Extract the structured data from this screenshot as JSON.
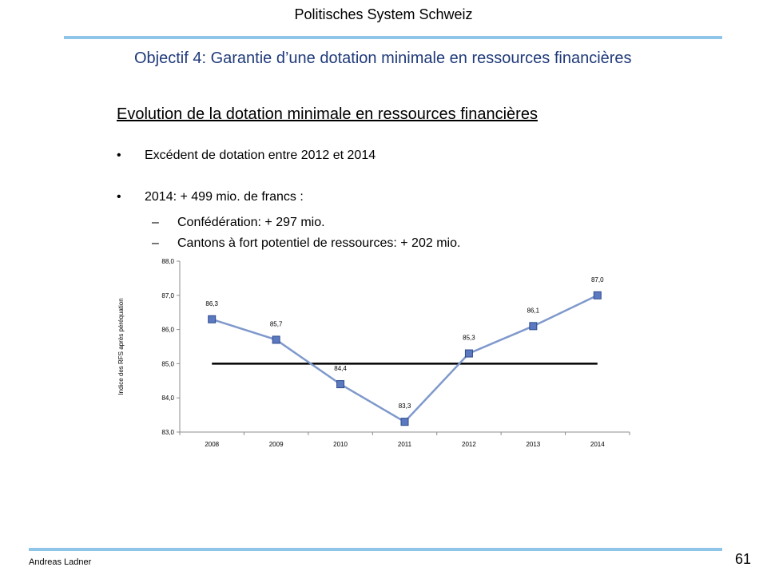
{
  "header": {
    "title": "Politisches System Schweiz"
  },
  "slide": {
    "title": "Objectif 4: Garantie d’une dotation minimale en ressources financières",
    "heading": "Evolution de la dotation minimale en ressources financières",
    "bullets": [
      {
        "marker": "•",
        "text": "Excédent de dotation entre 2012 et 2014"
      },
      {
        "marker": "•",
        "text": "2014: + 499 mio. de francs :"
      }
    ],
    "sub_bullets": [
      {
        "marker": "–",
        "text": "Confédération: + 297 mio."
      },
      {
        "marker": "–",
        "text": "Cantons à fort potentiel de ressources: + 202 mio."
      }
    ]
  },
  "chart_data": {
    "type": "line",
    "title": "",
    "xlabel": "",
    "ylabel": "Indice des RFS après péréquation",
    "categories": [
      "2008",
      "2009",
      "2010",
      "2011",
      "2012",
      "2013",
      "2014"
    ],
    "series": [
      {
        "values": [
          86.3,
          85.7,
          84.4,
          83.3,
          85.3,
          86.1,
          87.0
        ],
        "labels": [
          "86,3",
          "85,7",
          "84,4",
          "83,3",
          "85,3",
          "86,1",
          "87,0"
        ],
        "color": "#7f99cc",
        "marker_color": "#5b79c0"
      }
    ],
    "reference_line": {
      "value": 85.0,
      "color": "#000000"
    },
    "ylim": [
      83.0,
      88.0
    ],
    "yticks": [
      83.0,
      84.0,
      85.0,
      86.0,
      87.0,
      88.0
    ],
    "ytick_labels": [
      "83,0",
      "84,0",
      "85,0",
      "86,0",
      "87,0",
      "88,0"
    ],
    "grid": false,
    "legend": "none"
  },
  "footer": {
    "author": "Andreas Ladner",
    "page": "61"
  }
}
